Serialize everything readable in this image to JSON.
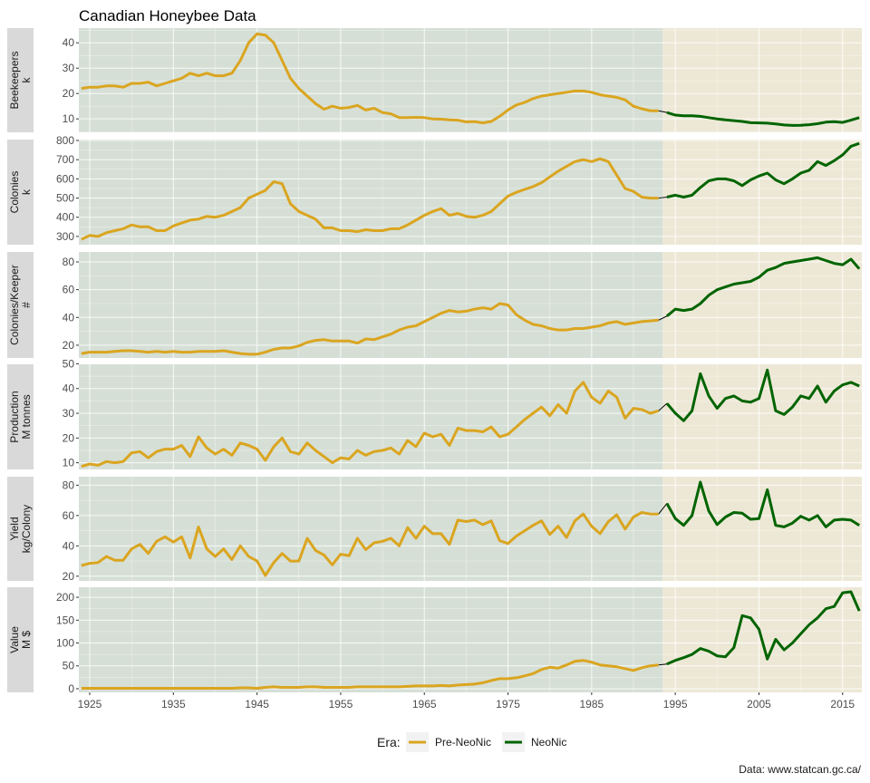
{
  "chart_data": {
    "type": "line",
    "title": "Canadian Honeybee Data",
    "caption": "Data: www.statcan.gc.ca/",
    "legend": {
      "title": "Era:",
      "position": "bottom",
      "items": [
        {
          "label": "Pre-NeoNic",
          "color": "#DAA520"
        },
        {
          "label": "NeoNic",
          "color": "#006400"
        }
      ]
    },
    "era_split_year": 1993.5,
    "xlim": [
      1923.7,
      2017.3
    ],
    "x_ticks": [
      1925,
      1935,
      1945,
      1955,
      1965,
      1975,
      1985,
      1995,
      2005,
      2015
    ],
    "background_colors": {
      "pre": "#d6dfd6",
      "neo": "#ede8d6"
    },
    "grid": true,
    "panels": [
      {
        "name": "beekeepers",
        "label": "Beekeepers",
        "unit": "k",
        "ylim": [
          4.7,
          45.8
        ],
        "y_ticks": [
          10,
          20,
          30,
          40
        ],
        "x": [
          1924,
          1925,
          1926,
          1927,
          1928,
          1929,
          1930,
          1931,
          1932,
          1933,
          1934,
          1935,
          1936,
          1937,
          1938,
          1939,
          1940,
          1941,
          1942,
          1943,
          1944,
          1945,
          1946,
          1947,
          1948,
          1949,
          1950,
          1951,
          1952,
          1953,
          1954,
          1955,
          1956,
          1957,
          1958,
          1959,
          1960,
          1961,
          1962,
          1963,
          1964,
          1965,
          1966,
          1967,
          1968,
          1969,
          1970,
          1971,
          1972,
          1973,
          1974,
          1975,
          1976,
          1977,
          1978,
          1979,
          1980,
          1981,
          1982,
          1983,
          1984,
          1985,
          1986,
          1987,
          1988,
          1989,
          1990,
          1991,
          1992,
          1993,
          1994,
          1995,
          1996,
          1997,
          1998,
          1999,
          2000,
          2001,
          2002,
          2003,
          2004,
          2005,
          2006,
          2007,
          2008,
          2009,
          2010,
          2011,
          2012,
          2013,
          2014,
          2015,
          2016,
          2017
        ],
        "y": [
          22,
          22.5,
          22.5,
          23,
          23,
          22.5,
          24,
          24,
          24.5,
          23,
          24,
          25,
          26,
          28,
          27,
          28,
          27,
          27,
          28,
          33,
          40,
          43.5,
          43,
          40,
          33,
          26,
          22,
          19,
          16,
          13.8,
          15,
          14.2,
          14.5,
          15.3,
          13.5,
          14.2,
          12.5,
          12,
          10.5,
          10.5,
          10.6,
          10.5,
          10,
          9.9,
          9.6,
          9.5,
          8.8,
          8.9,
          8.4,
          9,
          11,
          13.5,
          15.5,
          16.5,
          18,
          19,
          19.5,
          20,
          20.5,
          21,
          21,
          20.5,
          19.5,
          19,
          18.5,
          17.5,
          15,
          14,
          13.2,
          13.2,
          12.5,
          11.5,
          11.2,
          11.2,
          11,
          10.5,
          10,
          9.6,
          9.3,
          9,
          8.5,
          8.4,
          8.3,
          8,
          7.6,
          7.4,
          7.5,
          7.7,
          8.1,
          8.7,
          8.9,
          8.6,
          9.5,
          10.5
        ]
      },
      {
        "name": "colonies",
        "label": "Colonies",
        "unit": "k",
        "ylim": [
          257,
          805
        ],
        "y_ticks": [
          300,
          400,
          500,
          600,
          700,
          800
        ],
        "x": [
          1924,
          1925,
          1926,
          1927,
          1928,
          1929,
          1930,
          1931,
          1932,
          1933,
          1934,
          1935,
          1936,
          1937,
          1938,
          1939,
          1940,
          1941,
          1942,
          1943,
          1944,
          1945,
          1946,
          1947,
          1948,
          1949,
          1950,
          1951,
          1952,
          1953,
          1954,
          1955,
          1956,
          1957,
          1958,
          1959,
          1960,
          1961,
          1962,
          1963,
          1964,
          1965,
          1966,
          1967,
          1968,
          1969,
          1970,
          1971,
          1972,
          1973,
          1974,
          1975,
          1976,
          1977,
          1978,
          1979,
          1980,
          1981,
          1982,
          1983,
          1984,
          1985,
          1986,
          1987,
          1988,
          1989,
          1990,
          1991,
          1992,
          1993,
          1994,
          1995,
          1996,
          1997,
          1998,
          1999,
          2000,
          2001,
          2002,
          2003,
          2004,
          2005,
          2006,
          2007,
          2008,
          2009,
          2010,
          2011,
          2012,
          2013,
          2014,
          2015,
          2016,
          2017
        ],
        "y": [
          285,
          305,
          300,
          320,
          330,
          340,
          360,
          350,
          350,
          330,
          330,
          355,
          370,
          385,
          390,
          405,
          400,
          410,
          430,
          450,
          500,
          520,
          540,
          585,
          575,
          470,
          430,
          410,
          390,
          345,
          345,
          330,
          330,
          325,
          335,
          330,
          330,
          340,
          340,
          360,
          385,
          410,
          430,
          445,
          410,
          420,
          405,
          400,
          410,
          430,
          470,
          510,
          530,
          545,
          560,
          580,
          610,
          640,
          665,
          690,
          700,
          690,
          705,
          690,
          620,
          550,
          535,
          505,
          500,
          500,
          505,
          515,
          505,
          515,
          555,
          590,
          600,
          600,
          590,
          565,
          595,
          615,
          630,
          595,
          575,
          600,
          630,
          645,
          690,
          670,
          695,
          725,
          770,
          785
        ]
      },
      {
        "name": "colonies-per-keeper",
        "label": "Colonies/Keeper",
        "unit": "#",
        "ylim": [
          10.8,
          87.2
        ],
        "y_ticks": [
          20,
          40,
          60,
          80
        ],
        "x": [
          1924,
          1925,
          1926,
          1927,
          1928,
          1929,
          1930,
          1931,
          1932,
          1933,
          1934,
          1935,
          1936,
          1937,
          1938,
          1939,
          1940,
          1941,
          1942,
          1943,
          1944,
          1945,
          1946,
          1947,
          1948,
          1949,
          1950,
          1951,
          1952,
          1953,
          1954,
          1955,
          1956,
          1957,
          1958,
          1959,
          1960,
          1961,
          1962,
          1963,
          1964,
          1965,
          1966,
          1967,
          1968,
          1969,
          1970,
          1971,
          1972,
          1973,
          1974,
          1975,
          1976,
          1977,
          1978,
          1979,
          1980,
          1981,
          1982,
          1983,
          1984,
          1985,
          1986,
          1987,
          1988,
          1989,
          1990,
          1991,
          1992,
          1993,
          1994,
          1995,
          1996,
          1997,
          1998,
          1999,
          2000,
          2001,
          2002,
          2003,
          2004,
          2005,
          2006,
          2007,
          2008,
          2009,
          2010,
          2011,
          2012,
          2013,
          2014,
          2015,
          2016,
          2017
        ],
        "y": [
          14,
          15,
          15,
          15,
          15.5,
          16,
          16,
          15.5,
          15,
          15.5,
          15,
          15.5,
          15,
          15,
          15.5,
          15.5,
          15.5,
          16,
          15,
          14,
          13.5,
          13.5,
          15,
          17,
          18,
          18,
          19.5,
          22,
          23.5,
          24,
          23,
          23,
          23,
          21.5,
          24.5,
          24,
          26,
          28,
          31,
          33,
          34,
          37,
          40,
          43,
          45,
          44,
          44.5,
          46,
          47,
          46,
          50,
          49,
          42,
          38,
          35,
          34,
          32,
          31,
          31,
          32,
          32,
          33,
          34,
          36,
          37,
          35,
          36,
          37,
          37.5,
          38,
          41,
          46,
          45,
          46,
          50,
          56,
          60,
          62,
          64,
          65,
          66,
          69,
          74,
          76,
          79,
          80,
          81,
          82,
          83,
          81,
          79,
          78,
          82,
          75
        ]
      },
      {
        "name": "production",
        "label": "Production",
        "unit": "M tonnes",
        "ylim": [
          7.3,
          49.8
        ],
        "y_ticks": [
          10,
          20,
          30,
          40,
          50
        ],
        "x": [
          1924,
          1925,
          1926,
          1927,
          1928,
          1929,
          1930,
          1931,
          1932,
          1933,
          1934,
          1935,
          1936,
          1937,
          1938,
          1939,
          1940,
          1941,
          1942,
          1943,
          1944,
          1945,
          1946,
          1947,
          1948,
          1949,
          1950,
          1951,
          1952,
          1953,
          1954,
          1955,
          1956,
          1957,
          1958,
          1959,
          1960,
          1961,
          1962,
          1963,
          1964,
          1965,
          1966,
          1967,
          1968,
          1969,
          1970,
          1971,
          1972,
          1973,
          1974,
          1975,
          1976,
          1977,
          1978,
          1979,
          1980,
          1981,
          1982,
          1983,
          1984,
          1985,
          1986,
          1987,
          1988,
          1989,
          1990,
          1991,
          1992,
          1993,
          1994,
          1995,
          1996,
          1997,
          1998,
          1999,
          2000,
          2001,
          2002,
          2003,
          2004,
          2005,
          2006,
          2007,
          2008,
          2009,
          2010,
          2011,
          2012,
          2013,
          2014,
          2015,
          2016,
          2017
        ],
        "y": [
          8.5,
          9.5,
          9,
          10.5,
          10,
          10.5,
          14,
          14.5,
          12,
          14.5,
          15.5,
          15.5,
          17,
          12.5,
          20.5,
          16,
          13.5,
          15.5,
          13,
          18,
          17,
          15.5,
          11,
          16.5,
          20,
          14.5,
          13.5,
          18,
          15,
          12.5,
          10,
          12,
          11.5,
          15,
          13,
          14.5,
          15,
          16,
          13.5,
          19,
          16.5,
          22,
          20.5,
          21.5,
          17,
          24,
          23,
          23,
          22.5,
          24.5,
          20.5,
          21.5,
          24.5,
          27.5,
          30,
          32.5,
          29,
          33.5,
          30,
          39,
          42.5,
          36.5,
          34,
          39,
          36.5,
          28,
          32,
          31.5,
          30,
          31,
          34,
          30,
          27,
          31,
          46,
          37,
          32,
          36,
          37,
          35,
          34.5,
          36,
          47.5,
          31,
          29.5,
          32.5,
          37,
          36,
          41,
          34.5,
          39,
          41.5,
          42.5,
          41
        ]
      },
      {
        "name": "yield",
        "label": "Yield",
        "unit": "kg/Colony",
        "ylim": [
          16.9,
          85.6
        ],
        "y_ticks": [
          20,
          40,
          60,
          80
        ],
        "x": [
          1924,
          1925,
          1926,
          1927,
          1928,
          1929,
          1930,
          1931,
          1932,
          1933,
          1934,
          1935,
          1936,
          1937,
          1938,
          1939,
          1940,
          1941,
          1942,
          1943,
          1944,
          1945,
          1946,
          1947,
          1948,
          1949,
          1950,
          1951,
          1952,
          1953,
          1954,
          1955,
          1956,
          1957,
          1958,
          1959,
          1960,
          1961,
          1962,
          1963,
          1964,
          1965,
          1966,
          1967,
          1968,
          1969,
          1970,
          1971,
          1972,
          1973,
          1974,
          1975,
          1976,
          1977,
          1978,
          1979,
          1980,
          1981,
          1982,
          1983,
          1984,
          1985,
          1986,
          1987,
          1988,
          1989,
          1990,
          1991,
          1992,
          1993,
          1994,
          1995,
          1996,
          1997,
          1998,
          1999,
          2000,
          2001,
          2002,
          2003,
          2004,
          2005,
          2006,
          2007,
          2008,
          2009,
          2010,
          2011,
          2012,
          2013,
          2014,
          2015,
          2016,
          2017
        ],
        "y": [
          27,
          28.5,
          29,
          33,
          30.5,
          30.5,
          38,
          41,
          35,
          43,
          46,
          42.5,
          46,
          32,
          52.5,
          38,
          33,
          38,
          31,
          40,
          33,
          30,
          20.5,
          29,
          35,
          30,
          30,
          45,
          37,
          34,
          27.5,
          34.5,
          33.5,
          45,
          37.5,
          42,
          43,
          45,
          40,
          52,
          45,
          53,
          48,
          48,
          41,
          57,
          56,
          57,
          54,
          56.5,
          43.5,
          41.5,
          46.5,
          50,
          53.5,
          56.5,
          47.5,
          53,
          45.5,
          56.5,
          61,
          53,
          48,
          56,
          60.5,
          51,
          59,
          62,
          61,
          61,
          68,
          58,
          53.5,
          60,
          82,
          63,
          54,
          59,
          62,
          61.5,
          57.5,
          58,
          77,
          53.5,
          52.5,
          55,
          59.5,
          57,
          60,
          52.5,
          57,
          57.5,
          57,
          53.5
        ]
      },
      {
        "name": "value",
        "label": "Value",
        "unit": "M $",
        "ylim": [
          -8,
          222
        ],
        "y_ticks": [
          0,
          50,
          100,
          150,
          200
        ],
        "x": [
          1924,
          1925,
          1926,
          1927,
          1928,
          1929,
          1930,
          1931,
          1932,
          1933,
          1934,
          1935,
          1936,
          1937,
          1938,
          1939,
          1940,
          1941,
          1942,
          1943,
          1944,
          1945,
          1946,
          1947,
          1948,
          1949,
          1950,
          1951,
          1952,
          1953,
          1954,
          1955,
          1956,
          1957,
          1958,
          1959,
          1960,
          1961,
          1962,
          1963,
          1964,
          1965,
          1966,
          1967,
          1968,
          1969,
          1970,
          1971,
          1972,
          1973,
          1974,
          1975,
          1976,
          1977,
          1978,
          1979,
          1980,
          1981,
          1982,
          1983,
          1984,
          1985,
          1986,
          1987,
          1988,
          1989,
          1990,
          1991,
          1992,
          1993,
          1994,
          1995,
          1996,
          1997,
          1998,
          1999,
          2000,
          2001,
          2002,
          2003,
          2004,
          2005,
          2006,
          2007,
          2008,
          2009,
          2010,
          2011,
          2012,
          2013,
          2014,
          2015,
          2016,
          2017
        ],
        "y": [
          1,
          1,
          1,
          1,
          1,
          1,
          1,
          1,
          1,
          1,
          1,
          1,
          1,
          1,
          1,
          1,
          1,
          1,
          1,
          2,
          2,
          1,
          3,
          4,
          3,
          3,
          3,
          4,
          4,
          3,
          3,
          3,
          3,
          4,
          4,
          4,
          4,
          4,
          4,
          5,
          6,
          6,
          6,
          7,
          6,
          8,
          9,
          10,
          13,
          18,
          22,
          22,
          24,
          28,
          33,
          42,
          47,
          45,
          52,
          60,
          62,
          58,
          52,
          50,
          48,
          44,
          40,
          46,
          50,
          52,
          54,
          62,
          68,
          75,
          88,
          82,
          72,
          70,
          90,
          160,
          155,
          130,
          65,
          108,
          85,
          100,
          120,
          140,
          155,
          175,
          180,
          210,
          212,
          170
        ]
      }
    ]
  }
}
